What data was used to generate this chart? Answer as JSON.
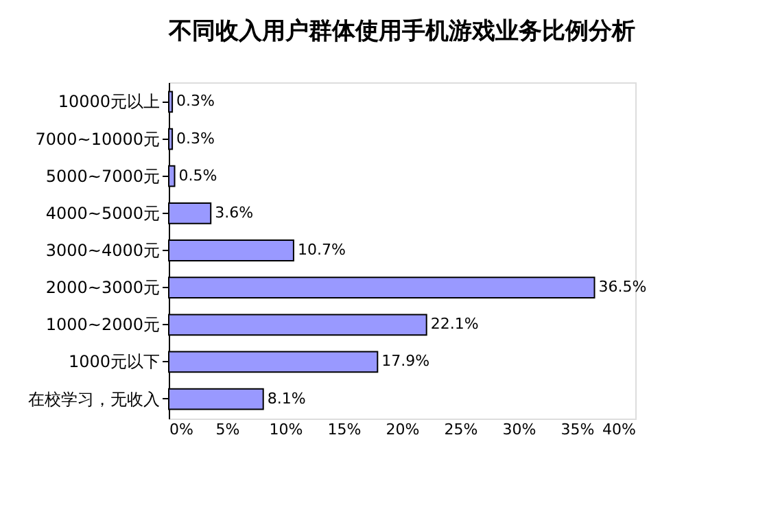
{
  "chart_data": {
    "type": "bar",
    "orientation": "horizontal",
    "title": "不同收入用户群体使用手机游戏业务比例分析",
    "categories": [
      "10000元以上",
      "7000~10000元",
      "5000~7000元",
      "4000~5000元",
      "3000~4000元",
      "2000~3000元",
      "1000~2000元",
      "1000元以下",
      "在校学习，无收入"
    ],
    "values": [
      0.3,
      0.3,
      0.5,
      3.6,
      10.7,
      36.5,
      22.1,
      17.9,
      8.1
    ],
    "value_labels": [
      "0.3%",
      "0.3%",
      "0.5%",
      "3.6%",
      "10.7%",
      "36.5%",
      "22.1%",
      "17.9%",
      "8.1%"
    ],
    "color": "#9999ff",
    "xlim": [
      0,
      40
    ],
    "xticks": [
      {
        "value": 0,
        "label": "0%"
      },
      {
        "value": 5,
        "label": "5%"
      },
      {
        "value": 10,
        "label": "10%"
      },
      {
        "value": 15,
        "label": "15%"
      },
      {
        "value": 20,
        "label": "20%"
      },
      {
        "value": 25,
        "label": "25%"
      },
      {
        "value": 30,
        "label": "30%"
      },
      {
        "value": 35,
        "label": "35%"
      },
      {
        "value": 40,
        "label": "40%"
      }
    ],
    "grid": false
  }
}
